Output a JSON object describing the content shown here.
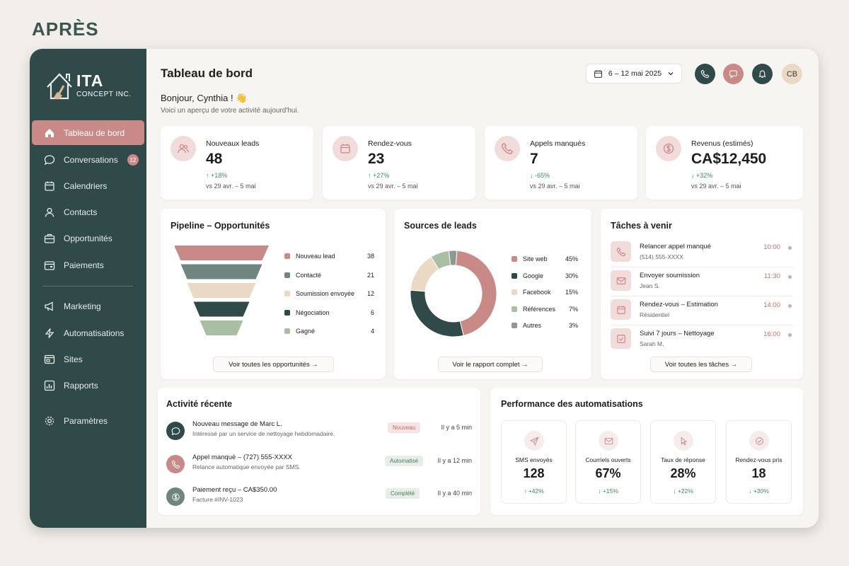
{
  "caption": "APRÈS",
  "brand": {
    "name": "ITA",
    "sub": "CONCEPT INC."
  },
  "sidebar": {
    "items": [
      {
        "label": "Tableau de bord",
        "icon": "home-icon"
      },
      {
        "label": "Conversations",
        "icon": "chat-icon",
        "badge": "12"
      },
      {
        "label": "Calendriers",
        "icon": "calendar-icon"
      },
      {
        "label": "Contacts",
        "icon": "user-icon"
      },
      {
        "label": "Opportunités",
        "icon": "briefcase-icon"
      },
      {
        "label": "Paiements",
        "icon": "wallet-icon"
      },
      {
        "label": "Marketing",
        "icon": "megaphone-icon"
      },
      {
        "label": "Automatisations",
        "icon": "bolt-icon"
      },
      {
        "label": "Sites",
        "icon": "browser-icon"
      },
      {
        "label": "Rapports",
        "icon": "chart-icon"
      },
      {
        "label": "Paramètres",
        "icon": "gear-icon"
      }
    ]
  },
  "header": {
    "title": "Tableau de bord",
    "greeting": "Bonjour, Cynthia ! 👋",
    "subtitle": "Voici un aperçu de votre activité aujourd'hui.",
    "date_range": "6 – 12 mai 2025",
    "avatar_initials": "CB"
  },
  "kpis": [
    {
      "label": "Nouveaux leads",
      "value": "48",
      "delta": "↑ +18%",
      "period": "vs 29 avr. – 5 mai",
      "icon": "users-icon"
    },
    {
      "label": "Rendez-vous",
      "value": "23",
      "delta": "↑ +27%",
      "period": "vs 29 avr. – 5 mai",
      "icon": "calendar-icon"
    },
    {
      "label": "Appels manqués",
      "value": "7",
      "delta": "↓ -65%",
      "period": "vs 29 avr. – 5 mai",
      "icon": "phone-icon"
    },
    {
      "label": "Revenus (estimés)",
      "value": "CA$12,450",
      "delta": "↓ +32%",
      "period": "vs 29 avr. – 5 mai",
      "icon": "dollar-icon"
    }
  ],
  "pipeline": {
    "title": "Pipeline – Opportunités",
    "button": "Voir toutes les opportunités →",
    "stages": [
      {
        "label": "Nouveau lead",
        "count": "38",
        "color": "#c98987"
      },
      {
        "label": "Contacté",
        "count": "21",
        "color": "#6f8580"
      },
      {
        "label": "Soumission envoyée",
        "count": "12",
        "color": "#ead9c4"
      },
      {
        "label": "Négociation",
        "count": "6",
        "color": "#2f4a48"
      },
      {
        "label": "Gagné",
        "count": "4",
        "color": "#a9bfa3"
      }
    ]
  },
  "sources": {
    "title": "Sources de leads",
    "button": "Voir le rapport complet →",
    "items": [
      {
        "label": "Site web",
        "pct": "45%",
        "value": 45,
        "color": "#c98987"
      },
      {
        "label": "Google",
        "pct": "30%",
        "value": 30,
        "color": "#2f4a48"
      },
      {
        "label": "Facebook",
        "pct": "15%",
        "value": 15,
        "color": "#ead9c4"
      },
      {
        "label": "Références",
        "pct": "7%",
        "value": 7,
        "color": "#a9bfa3"
      },
      {
        "label": "Autres",
        "pct": "3%",
        "value": 3,
        "color": "#8e9894"
      }
    ]
  },
  "tasks": {
    "title": "Tâches à venir",
    "button": "Voir toutes les tâches →",
    "items": [
      {
        "title": "Relancer appel manqué",
        "sub": "(514) 555-XXXX",
        "time": "10:00",
        "icon": "phone-icon"
      },
      {
        "title": "Envoyer soumission",
        "sub": "Jean S.",
        "time": "11:30",
        "icon": "mail-icon"
      },
      {
        "title": "Rendez-vous – Estimation",
        "sub": "Résidentiel",
        "time": "14:00",
        "icon": "calendar-icon"
      },
      {
        "title": "Suivi 7 jours – Nettoyage",
        "sub": "Sarah M.",
        "time": "16:00",
        "icon": "check-icon"
      }
    ]
  },
  "activity": {
    "title": "Activité récente",
    "items": [
      {
        "title": "Nouveau message de Marc L.",
        "sub": "Intéressé par un service de nettoyage hebdomadaire.",
        "badge": "Nouveau",
        "time": "Il y a 5 min",
        "icon": "chat-icon"
      },
      {
        "title": "Appel manqué – (727) 555-XXXX",
        "sub": "Relance automatique envoyée par SMS.",
        "badge": "Automatisé",
        "time": "Il y a 12 min",
        "icon": "phone-icon"
      },
      {
        "title": "Paiement reçu – CA$350.00",
        "sub": "Facture #INV-1023",
        "badge": "Complété",
        "time": "Il y a 40 min",
        "icon": "dollar-icon"
      }
    ]
  },
  "automation": {
    "title": "Performance des automatisations",
    "items": [
      {
        "label": "SMS envoyés",
        "value": "128",
        "delta": "↑ +42%",
        "icon": "send-icon"
      },
      {
        "label": "Courriels ouverts",
        "value": "67%",
        "delta": "↓ +15%",
        "icon": "mail-icon"
      },
      {
        "label": "Taux de réponse",
        "value": "28%",
        "delta": "↓ +22%",
        "icon": "cursor-icon"
      },
      {
        "label": "Rendez-vous pris",
        "value": "18",
        "delta": "↓ +30%",
        "icon": "check-circle-icon"
      }
    ]
  },
  "chart_data": [
    {
      "type": "bar",
      "title": "Pipeline – Opportunités",
      "categories": [
        "Nouveau lead",
        "Contacté",
        "Soumission envoyée",
        "Négociation",
        "Gagné"
      ],
      "values": [
        38,
        21,
        12,
        6,
        4
      ]
    },
    {
      "type": "pie",
      "title": "Sources de leads",
      "categories": [
        "Site web",
        "Google",
        "Facebook",
        "Références",
        "Autres"
      ],
      "values": [
        45,
        30,
        15,
        7,
        3
      ]
    }
  ]
}
